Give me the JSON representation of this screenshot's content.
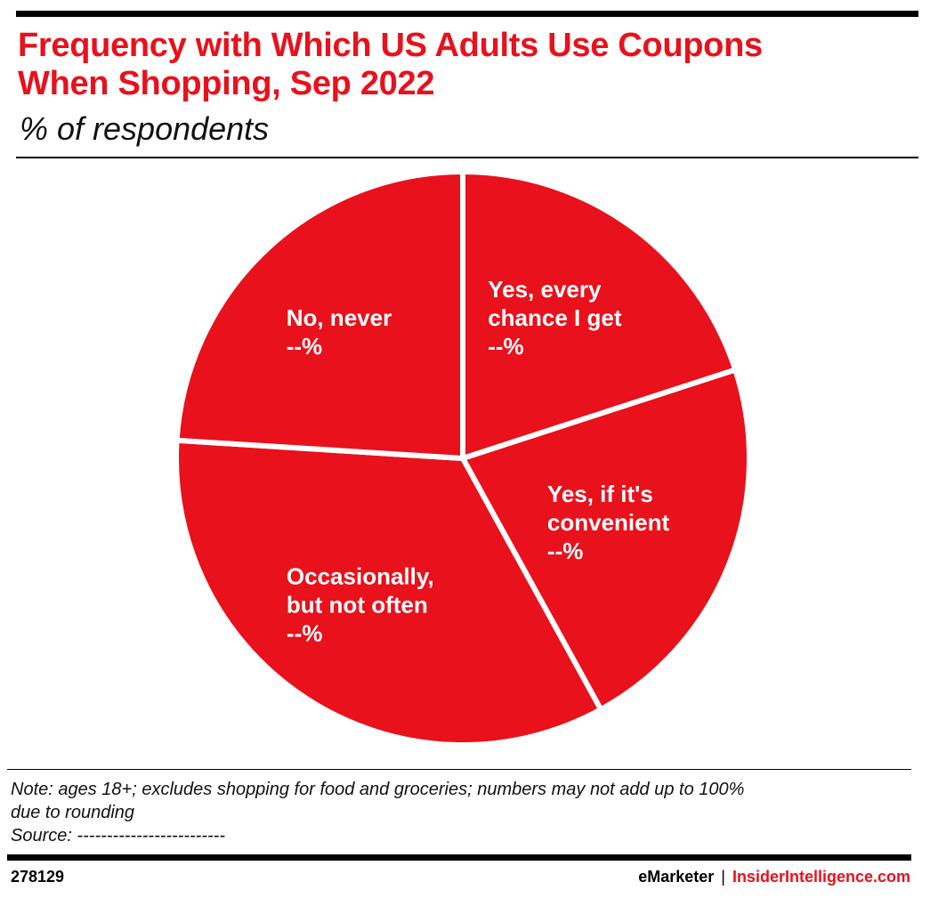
{
  "header": {
    "title_line1": "Frequency with Which US Adults Use Coupons",
    "title_line2": "When Shopping, Sep 2022",
    "subtitle": "% of respondents"
  },
  "chart_data": {
    "type": "pie",
    "title": "Frequency with Which US Adults Use Coupons When Shopping, Sep 2022",
    "subtitle": "% of respondents",
    "slices": [
      {
        "label_lines": [
          "Yes, every",
          "chance I get"
        ],
        "value_label": "--%",
        "value": 20,
        "color": "#e8111c"
      },
      {
        "label_lines": [
          "Yes, if it's",
          "convenient"
        ],
        "value_label": "--%",
        "value": 22,
        "color": "#e8111c"
      },
      {
        "label_lines": [
          "Occasionally,",
          "but not often"
        ],
        "value_label": "--%",
        "value": 34,
        "color": "#e8111c"
      },
      {
        "label_lines": [
          "No, never"
        ],
        "value_label": "--%",
        "value": 24,
        "color": "#e8111c"
      }
    ]
  },
  "footer": {
    "note_line1": "Note: ages 18+; excludes shopping for food and groceries; numbers may not add up to 100%",
    "note_line2": "due to rounding",
    "source": "Source: -------------------------",
    "chart_id": "278129",
    "brand_emarketer": "eMarketer",
    "brand_separator": "|",
    "brand_insider": "InsiderIntelligence.com"
  },
  "colors": {
    "accent": "#e8111c",
    "slice_gap": "#ffffff",
    "text": "#000000"
  }
}
